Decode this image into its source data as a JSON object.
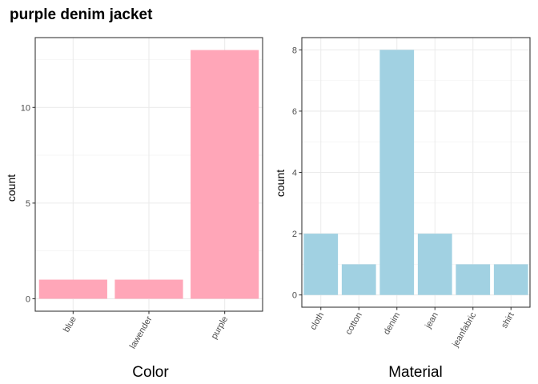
{
  "title": "purple denim jacket",
  "chart_data": [
    {
      "type": "bar",
      "xlabel": "Color",
      "ylabel": "count",
      "categories": [
        "blue",
        "lawender",
        "purple"
      ],
      "values": [
        1,
        1,
        13
      ],
      "ylim": [
        -0.65,
        13.65
      ],
      "yticks": [
        0,
        5,
        10
      ],
      "bar_color": "#ffa6b8",
      "grid": true,
      "legend": "none"
    },
    {
      "type": "bar",
      "xlabel": "Material",
      "ylabel": "count",
      "categories": [
        "cloth",
        "cotton",
        "denim",
        "jean",
        "jeanfabric",
        "shirt"
      ],
      "values": [
        2,
        1,
        8,
        2,
        1,
        1
      ],
      "ylim": [
        -0.4,
        8.4
      ],
      "yticks": [
        0,
        2,
        4,
        6,
        8
      ],
      "bar_color": "#a1d1e2",
      "grid": true,
      "legend": "none"
    }
  ]
}
